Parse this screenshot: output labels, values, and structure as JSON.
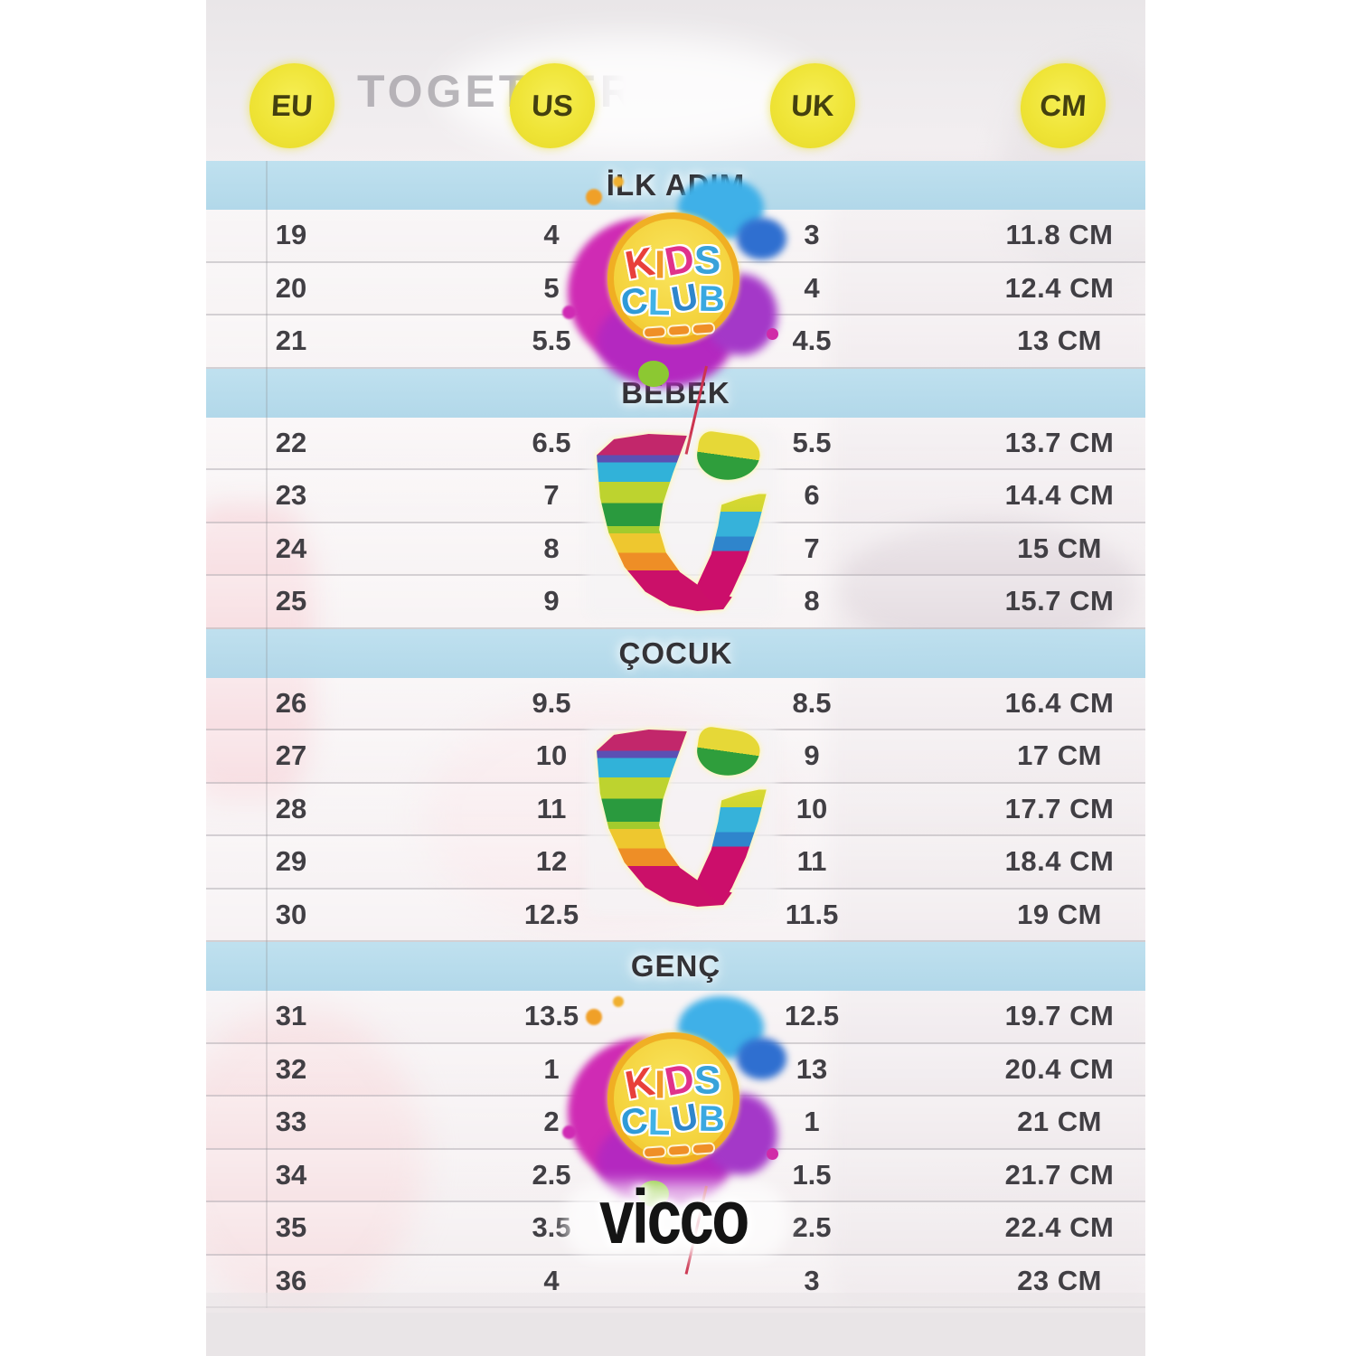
{
  "background": {
    "photo_text": "TOGETHER"
  },
  "header": {
    "columns": [
      "EU",
      "US",
      "UK",
      "CM"
    ]
  },
  "brand": {
    "wordmark": "vicco",
    "kids_club_line1": "KIDS",
    "kids_club_line2": "CLUB"
  },
  "colors": {
    "circle_yellow": "#efe436",
    "band_blue": "#bcdcec",
    "text_dark": "#413f44",
    "wordmark_black": "#141414"
  },
  "chart_data": {
    "type": "table",
    "columns": [
      "EU",
      "US",
      "UK",
      "CM"
    ],
    "sections": [
      {
        "title": "İLK ADIM",
        "rows": [
          [
            "19",
            "4",
            "3",
            "11.8 CM"
          ],
          [
            "20",
            "5",
            "4",
            "12.4 CM"
          ],
          [
            "21",
            "5.5",
            "4.5",
            "13 CM"
          ]
        ]
      },
      {
        "title": "BEBEK",
        "rows": [
          [
            "22",
            "6.5",
            "5.5",
            "13.7 CM"
          ],
          [
            "23",
            "7",
            "6",
            "14.4 CM"
          ],
          [
            "24",
            "8",
            "7",
            "15 CM"
          ],
          [
            "25",
            "9",
            "8",
            "15.7 CM"
          ]
        ]
      },
      {
        "title": "ÇOCUK",
        "rows": [
          [
            "26",
            "9.5",
            "8.5",
            "16.4 CM"
          ],
          [
            "27",
            "10",
            "9",
            "17 CM"
          ],
          [
            "28",
            "11",
            "10",
            "17.7 CM"
          ],
          [
            "29",
            "12",
            "11",
            "18.4 CM"
          ],
          [
            "30",
            "12.5",
            "11.5",
            "19 CM"
          ]
        ]
      },
      {
        "title": "GENÇ",
        "rows": [
          [
            "31",
            "13.5",
            "12.5",
            "19.7 CM"
          ],
          [
            "32",
            "1",
            "13",
            "20.4 CM"
          ],
          [
            "33",
            "2",
            "1",
            "21 CM"
          ],
          [
            "34",
            "2.5",
            "1.5",
            "21.7 CM"
          ],
          [
            "35",
            "3.5",
            "2.5",
            "22.4 CM"
          ],
          [
            "36",
            "4",
            "3",
            "23 CM"
          ]
        ]
      }
    ]
  }
}
